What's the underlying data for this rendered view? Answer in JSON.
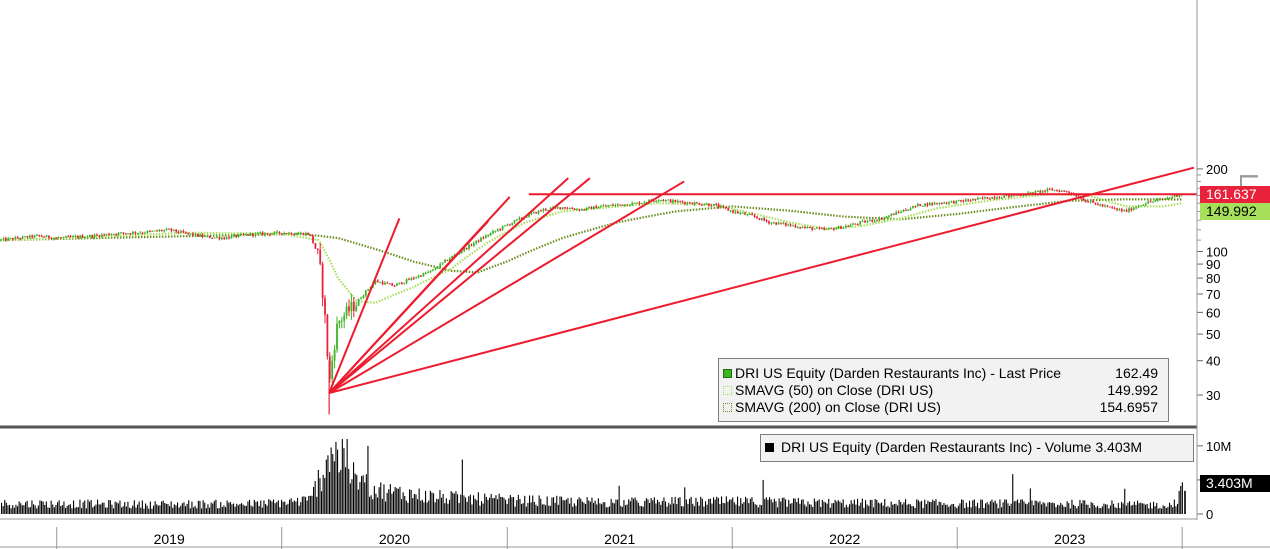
{
  "chart_data": [
    {
      "type": "candlestick",
      "y_scale": "log",
      "y_axis_label": "Log",
      "ylim": [
        25,
        200
      ],
      "y_ticks": [
        30,
        40,
        50,
        60,
        70,
        80,
        90,
        100,
        200
      ],
      "x_labels": [
        "2019",
        "2020",
        "2021",
        "2022",
        "2023"
      ],
      "legend": [
        {
          "label": "DRI US Equity (Darden Restaurants Inc) - Last Price",
          "value": "162.49",
          "color": "#3cb521"
        },
        {
          "label": "SMAVG (50)  on Close (DRI US)",
          "value": "149.992",
          "color": "#a6e05a"
        },
        {
          "label": "SMAVG (200)  on Close (DRI US)",
          "value": "154.6957",
          "color": "#6b8e23"
        }
      ],
      "price_tags": [
        {
          "value": "161.637",
          "color": "#e8223a"
        },
        {
          "value": "149.992",
          "color": "#a6e05a"
        }
      ],
      "resistance_level": 161.637,
      "price_points": [
        [
          "2018-10-01",
          110
        ],
        [
          "2018-11-01",
          112
        ],
        [
          "2018-12-01",
          114
        ],
        [
          "2019-01-01",
          112
        ],
        [
          "2019-02-01",
          113
        ],
        [
          "2019-03-01",
          114
        ],
        [
          "2019-04-01",
          116
        ],
        [
          "2019-05-01",
          117
        ],
        [
          "2019-06-01",
          118
        ],
        [
          "2019-07-01",
          120
        ],
        [
          "2019-08-01",
          116
        ],
        [
          "2019-09-01",
          113
        ],
        [
          "2019-10-01",
          112
        ],
        [
          "2019-11-01",
          115
        ],
        [
          "2019-12-01",
          116
        ],
        [
          "2020-01-01",
          117
        ],
        [
          "2020-02-15",
          116
        ],
        [
          "2020-03-01",
          95
        ],
        [
          "2020-03-18",
          32
        ],
        [
          "2020-04-01",
          55
        ],
        [
          "2020-05-01",
          65
        ],
        [
          "2020-06-01",
          78
        ],
        [
          "2020-07-01",
          75
        ],
        [
          "2020-08-01",
          80
        ],
        [
          "2020-09-01",
          85
        ],
        [
          "2020-10-01",
          95
        ],
        [
          "2020-11-01",
          105
        ],
        [
          "2020-12-01",
          115
        ],
        [
          "2021-01-01",
          125
        ],
        [
          "2021-02-01",
          135
        ],
        [
          "2021-03-01",
          142
        ],
        [
          "2021-04-01",
          145
        ],
        [
          "2021-05-01",
          142
        ],
        [
          "2021-06-01",
          146
        ],
        [
          "2021-07-01",
          148
        ],
        [
          "2021-08-01",
          150
        ],
        [
          "2021-09-01",
          155
        ],
        [
          "2021-10-01",
          152
        ],
        [
          "2021-11-01",
          150
        ],
        [
          "2021-12-01",
          148
        ],
        [
          "2022-01-01",
          140
        ],
        [
          "2022-02-01",
          135
        ],
        [
          "2022-03-01",
          128
        ],
        [
          "2022-04-01",
          125
        ],
        [
          "2022-05-01",
          122
        ],
        [
          "2022-06-01",
          120
        ],
        [
          "2022-07-01",
          123
        ],
        [
          "2022-08-01",
          128
        ],
        [
          "2022-09-01",
          132
        ],
        [
          "2022-10-01",
          140
        ],
        [
          "2022-11-01",
          148
        ],
        [
          "2022-12-01",
          150
        ],
        [
          "2023-01-01",
          152
        ],
        [
          "2023-02-01",
          155
        ],
        [
          "2023-03-01",
          158
        ],
        [
          "2023-04-01",
          160
        ],
        [
          "2023-05-01",
          163
        ],
        [
          "2023-06-01",
          168
        ],
        [
          "2023-07-01",
          165
        ],
        [
          "2023-08-01",
          152
        ],
        [
          "2023-09-01",
          145
        ],
        [
          "2023-10-01",
          140
        ],
        [
          "2023-11-01",
          150
        ],
        [
          "2023-12-01",
          155
        ],
        [
          "2024-01-01",
          162.49
        ]
      ],
      "sma50_points": [
        [
          "2018-10-01",
          110
        ],
        [
          "2019-03-01",
          113
        ],
        [
          "2019-08-01",
          117
        ],
        [
          "2020-01-01",
          116
        ],
        [
          "2020-03-01",
          110
        ],
        [
          "2020-04-01",
          80
        ],
        [
          "2020-05-01",
          66
        ],
        [
          "2020-06-01",
          65
        ],
        [
          "2020-08-01",
          74
        ],
        [
          "2020-10-01",
          86
        ],
        [
          "2020-12-01",
          108
        ],
        [
          "2021-02-01",
          128
        ],
        [
          "2021-04-01",
          140
        ],
        [
          "2021-07-01",
          146
        ],
        [
          "2021-09-01",
          150
        ],
        [
          "2021-12-01",
          148
        ],
        [
          "2022-02-01",
          138
        ],
        [
          "2022-04-01",
          128
        ],
        [
          "2022-06-01",
          121
        ],
        [
          "2022-08-01",
          124
        ],
        [
          "2022-10-01",
          132
        ],
        [
          "2022-12-01",
          144
        ],
        [
          "2023-03-01",
          154
        ],
        [
          "2023-06-01",
          162
        ],
        [
          "2023-08-01",
          160
        ],
        [
          "2023-10-01",
          146
        ],
        [
          "2023-12-01",
          146
        ],
        [
          "2024-01-01",
          149.992
        ]
      ],
      "sma200_points": [
        [
          "2018-10-01",
          110
        ],
        [
          "2019-06-01",
          113
        ],
        [
          "2020-02-01",
          116
        ],
        [
          "2020-04-01",
          112
        ],
        [
          "2020-06-01",
          102
        ],
        [
          "2020-08-01",
          92
        ],
        [
          "2020-10-01",
          85
        ],
        [
          "2020-11-15",
          84
        ],
        [
          "2021-01-01",
          92
        ],
        [
          "2021-04-01",
          112
        ],
        [
          "2021-07-01",
          128
        ],
        [
          "2021-10-01",
          140
        ],
        [
          "2022-01-01",
          146
        ],
        [
          "2022-04-01",
          141
        ],
        [
          "2022-07-01",
          134
        ],
        [
          "2022-10-01",
          131
        ],
        [
          "2023-01-01",
          137
        ],
        [
          "2023-04-01",
          145
        ],
        [
          "2023-07-01",
          153
        ],
        [
          "2023-10-01",
          155
        ],
        [
          "2024-01-01",
          154.6957
        ]
      ],
      "fan_lines": [
        {
          "from": [
            "2020-03-18",
            30.5
          ],
          "to": [
            "2020-07-10",
            132
          ]
        },
        {
          "from": [
            "2020-03-18",
            30.5
          ],
          "to": [
            "2020-12-01",
            129
          ]
        },
        {
          "from": [
            "2020-03-18",
            30.5
          ],
          "to": [
            "2021-01-05",
            158
          ]
        },
        {
          "from": [
            "2020-03-18",
            30.5
          ],
          "to": [
            "2021-04-10",
            185
          ]
        },
        {
          "from": [
            "2020-03-18",
            30.5
          ],
          "to": [
            "2021-05-15",
            185
          ]
        },
        {
          "from": [
            "2020-03-18",
            30.5
          ],
          "to": [
            "2021-10-15",
            180
          ]
        },
        {
          "from": [
            "2020-03-18",
            30.5
          ],
          "to": [
            "2024-01-20",
            202
          ]
        }
      ]
    },
    {
      "type": "bar",
      "y_ticks": [
        {
          "value": 10,
          "label": "10M"
        },
        {
          "value": 5,
          "label": "5M"
        },
        {
          "value": 0,
          "label": "0"
        }
      ],
      "ylim": [
        0,
        11
      ],
      "legend": [
        {
          "label": "DRI US Equity (Darden Restaurants Inc) - Volume",
          "value": "3.403M",
          "color": "#000000"
        }
      ],
      "value_tag": "3.403M",
      "volume_profile_M": [
        [
          "2018-10-01",
          1.5
        ],
        [
          "2019-01-01",
          1.5
        ],
        [
          "2019-06-01",
          1.4
        ],
        [
          "2019-12-01",
          1.5
        ],
        [
          "2020-02-15",
          2.0
        ],
        [
          "2020-03-10",
          7.0
        ],
        [
          "2020-03-20",
          10.0
        ],
        [
          "2020-04-15",
          6.0
        ],
        [
          "2020-06-01",
          3.5
        ],
        [
          "2020-09-01",
          2.5
        ],
        [
          "2021-01-01",
          2.0
        ],
        [
          "2021-06-01",
          1.7
        ],
        [
          "2022-01-01",
          1.8
        ],
        [
          "2022-06-01",
          1.6
        ],
        [
          "2023-01-01",
          1.5
        ],
        [
          "2023-06-01",
          1.5
        ],
        [
          "2023-12-15",
          1.3
        ],
        [
          "2024-01-01",
          3.403
        ]
      ]
    }
  ]
}
